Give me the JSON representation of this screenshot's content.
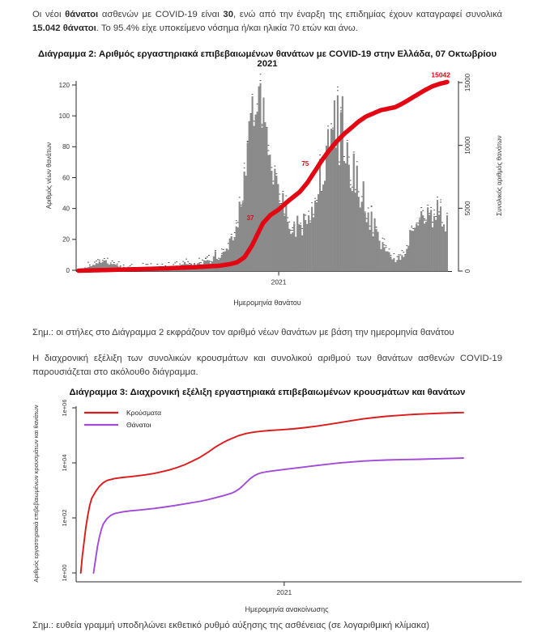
{
  "intro": {
    "segments": [
      {
        "text": "Οι νέοι ",
        "bold": false
      },
      {
        "text": "θάνατοι",
        "bold": true
      },
      {
        "text": " ασθενών με COVID-19 είναι ",
        "bold": false
      },
      {
        "text": "30",
        "bold": true
      },
      {
        "text": ", ενώ από την έναρξη της επιδημίας έχουν καταγραφεί συνολικά ",
        "bold": false
      },
      {
        "text": "15.042 θάνατοι",
        "bold": true
      },
      {
        "text": ". Το 95.4% είχε υποκείμενο νόσημα ή/και ηλικία 70 ετών και άνω.",
        "bold": false
      }
    ]
  },
  "note_chart2": "Σημ.: οι στήλες στο Διάγραμμα 2 εκφράζουν τον αριθμό νέων θανάτων με βάση την ημερομηνία θανάτου",
  "para_between": "Η διαχρονική εξέλιξη των συνολικών κρουσμάτων και συνολικού αριθμού των θανάτων ασθενών COVID-19 παρουσιάζεται στο ακόλουθο διάγραμμα.",
  "note_chart3": "Σημ.: ευθεία γραμμή υποδηλώνει εκθετικό ρυθμό αύξησης της ασθένειας (σε λογαριθμική κλίμακα)",
  "chart_data": [
    {
      "id": "diagram2",
      "type": "bar",
      "title": "Διάγραμμα 2: Αριθμός εργαστηριακά επιβεβαιωμένων θανάτων με COVID-19 στην Ελλάδα, 07 Οκτωβρίου 2021",
      "xlabel": "Ημερομηνία θανάτου",
      "x_tick": "2021",
      "x_tick_fraction": 0.543,
      "ylabel_left": "Αριθμός νέων θανάτων",
      "yticks_left": [
        0,
        20,
        40,
        60,
        80,
        100,
        120
      ],
      "ylim_left": [
        0,
        120
      ],
      "ylabel_right": "Συνολικός αριθμός θανάτων",
      "yticks_right": [
        0,
        5000,
        10000,
        15000
      ],
      "ylim_right": [
        0,
        15000
      ],
      "bar_color": "#8a8a8a",
      "speckle_color": "#3a3a3a",
      "line_color": "#e30613",
      "bar_count": 230,
      "bars_envelope": [
        [
          0,
          0.6
        ],
        [
          0.03,
          2
        ],
        [
          0.05,
          4
        ],
        [
          0.07,
          5.5
        ],
        [
          0.09,
          4
        ],
        [
          0.12,
          2
        ],
        [
          0.16,
          1.2
        ],
        [
          0.2,
          1.6
        ],
        [
          0.24,
          2.2
        ],
        [
          0.28,
          3
        ],
        [
          0.32,
          4
        ],
        [
          0.36,
          6
        ],
        [
          0.4,
          12
        ],
        [
          0.425,
          24
        ],
        [
          0.45,
          55
        ],
        [
          0.465,
          90
        ],
        [
          0.48,
          112
        ],
        [
          0.49,
          118
        ],
        [
          0.5,
          100
        ],
        [
          0.515,
          72
        ],
        [
          0.53,
          55
        ],
        [
          0.55,
          42
        ],
        [
          0.57,
          32
        ],
        [
          0.585,
          27
        ],
        [
          0.6,
          28
        ],
        [
          0.62,
          33
        ],
        [
          0.64,
          44
        ],
        [
          0.66,
          58
        ],
        [
          0.68,
          75
        ],
        [
          0.695,
          90
        ],
        [
          0.71,
          92
        ],
        [
          0.725,
          85
        ],
        [
          0.74,
          72
        ],
        [
          0.76,
          55
        ],
        [
          0.78,
          40
        ],
        [
          0.8,
          26
        ],
        [
          0.82,
          16
        ],
        [
          0.84,
          10
        ],
        [
          0.86,
          7
        ],
        [
          0.88,
          8
        ],
        [
          0.9,
          18
        ],
        [
          0.915,
          30
        ],
        [
          0.93,
          40
        ],
        [
          0.945,
          42
        ],
        [
          0.96,
          36
        ],
        [
          0.98,
          37
        ],
        [
          1,
          30
        ]
      ],
      "cumulative": [
        [
          0,
          30
        ],
        [
          0.08,
          90
        ],
        [
          0.16,
          150
        ],
        [
          0.24,
          220
        ],
        [
          0.32,
          320
        ],
        [
          0.38,
          420
        ],
        [
          0.41,
          550
        ],
        [
          0.43,
          700
        ],
        [
          0.45,
          1100
        ],
        [
          0.47,
          2000
        ],
        [
          0.485,
          2900
        ],
        [
          0.5,
          3800
        ],
        [
          0.52,
          4450
        ],
        [
          0.543,
          4900
        ],
        [
          0.57,
          5600
        ],
        [
          0.6,
          6300
        ],
        [
          0.62,
          7000
        ],
        [
          0.64,
          7900
        ],
        [
          0.66,
          8800
        ],
        [
          0.68,
          9600
        ],
        [
          0.7,
          10300
        ],
        [
          0.72,
          10900
        ],
        [
          0.74,
          11400
        ],
        [
          0.76,
          11900
        ],
        [
          0.78,
          12300
        ],
        [
          0.8,
          12550
        ],
        [
          0.82,
          12800
        ],
        [
          0.84,
          12920
        ],
        [
          0.86,
          13050
        ],
        [
          0.88,
          13350
        ],
        [
          0.9,
          13700
        ],
        [
          0.92,
          14050
        ],
        [
          0.94,
          14400
        ],
        [
          0.96,
          14700
        ],
        [
          0.98,
          14900
        ],
        [
          1,
          15042
        ]
      ],
      "annotations": [
        {
          "text": "37",
          "f": 0.466,
          "value": 4250,
          "final": false
        },
        {
          "text": "75",
          "f": 0.615,
          "value": 8550,
          "final": false
        },
        {
          "text": "15042",
          "f": 1.0,
          "value": 15042,
          "final": true
        }
      ]
    },
    {
      "id": "diagram3",
      "type": "line",
      "title": "Διάγραμμα 3: Διαχρονική εξέλιξη εργαστηριακά επιβεβαιωμένων κρουσμάτων και θανάτων",
      "xlabel": "Ημερομηνία ανακοίνωσης",
      "x_tick": "2021",
      "x_tick_fraction": 0.467,
      "ylabel": "Αριθμός εργαστηριακά επιβεβαιωμένων κρουσμάτων και θανάτων",
      "yscale": "log",
      "yticks": [
        "1e+00",
        "1e+02",
        "1e+04",
        "1e+06"
      ],
      "ylim": [
        1,
        1000000
      ],
      "legend_position": "top-left",
      "series": [
        {
          "name": "Κρούσματα",
          "color": "#dc1c1c",
          "points": [
            [
              0.012,
              1
            ],
            [
              0.016,
              4
            ],
            [
              0.02,
              12
            ],
            [
              0.025,
              45
            ],
            [
              0.03,
              120
            ],
            [
              0.035,
              280
            ],
            [
              0.04,
              500
            ],
            [
              0.05,
              900
            ],
            [
              0.06,
              1400
            ],
            [
              0.07,
              1900
            ],
            [
              0.08,
              2300
            ],
            [
              0.1,
              2700
            ],
            [
              0.12,
              2950
            ],
            [
              0.14,
              3150
            ],
            [
              0.16,
              3400
            ],
            [
              0.18,
              3700
            ],
            [
              0.2,
              4100
            ],
            [
              0.22,
              4700
            ],
            [
              0.24,
              5500
            ],
            [
              0.26,
              6700
            ],
            [
              0.28,
              8500
            ],
            [
              0.3,
              11500
            ],
            [
              0.32,
              16000
            ],
            [
              0.34,
              24000
            ],
            [
              0.36,
              38000
            ],
            [
              0.38,
              55000
            ],
            [
              0.39,
              65000
            ],
            [
              0.4,
              75000
            ],
            [
              0.42,
              98000
            ],
            [
              0.44,
              118000
            ],
            [
              0.46,
              132000
            ],
            [
              0.48,
              142000
            ],
            [
              0.5,
              150000
            ],
            [
              0.53,
              160000
            ],
            [
              0.56,
              172000
            ],
            [
              0.59,
              190000
            ],
            [
              0.62,
              215000
            ],
            [
              0.65,
              248000
            ],
            [
              0.68,
              290000
            ],
            [
              0.71,
              340000
            ],
            [
              0.74,
              395000
            ],
            [
              0.77,
              445000
            ],
            [
              0.8,
              490000
            ],
            [
              0.83,
              530000
            ],
            [
              0.86,
              565000
            ],
            [
              0.89,
              595000
            ],
            [
              0.92,
              620000
            ],
            [
              0.95,
              645000
            ],
            [
              0.98,
              665000
            ],
            [
              1,
              675000
            ]
          ]
        },
        {
          "name": "Θάνατοι",
          "color": "#a24bd8",
          "points": [
            [
              0.045,
              1
            ],
            [
              0.05,
              3
            ],
            [
              0.055,
              9
            ],
            [
              0.06,
              20
            ],
            [
              0.065,
              38
            ],
            [
              0.07,
              60
            ],
            [
              0.08,
              95
            ],
            [
              0.09,
              125
            ],
            [
              0.1,
              145
            ],
            [
              0.12,
              165
            ],
            [
              0.14,
              180
            ],
            [
              0.16,
              192
            ],
            [
              0.18,
              205
            ],
            [
              0.2,
              220
            ],
            [
              0.23,
              250
            ],
            [
              0.26,
              290
            ],
            [
              0.29,
              340
            ],
            [
              0.32,
              400
            ],
            [
              0.34,
              460
            ],
            [
              0.36,
              540
            ],
            [
              0.38,
              640
            ],
            [
              0.4,
              780
            ],
            [
              0.41,
              900
            ],
            [
              0.42,
              1100
            ],
            [
              0.43,
              1450
            ],
            [
              0.44,
              2000
            ],
            [
              0.45,
              2700
            ],
            [
              0.46,
              3400
            ],
            [
              0.47,
              4000
            ],
            [
              0.48,
              4450
            ],
            [
              0.5,
              4950
            ],
            [
              0.53,
              5600
            ],
            [
              0.56,
              6300
            ],
            [
              0.59,
              7100
            ],
            [
              0.62,
              8000
            ],
            [
              0.65,
              8900
            ],
            [
              0.68,
              9900
            ],
            [
              0.71,
              10800
            ],
            [
              0.74,
              11600
            ],
            [
              0.77,
              12200
            ],
            [
              0.8,
              12700
            ],
            [
              0.83,
              13000
            ],
            [
              0.86,
              13250
            ],
            [
              0.89,
              13600
            ],
            [
              0.92,
              13950
            ],
            [
              0.95,
              14350
            ],
            [
              0.98,
              14750
            ],
            [
              1,
              15042
            ]
          ]
        }
      ]
    }
  ]
}
